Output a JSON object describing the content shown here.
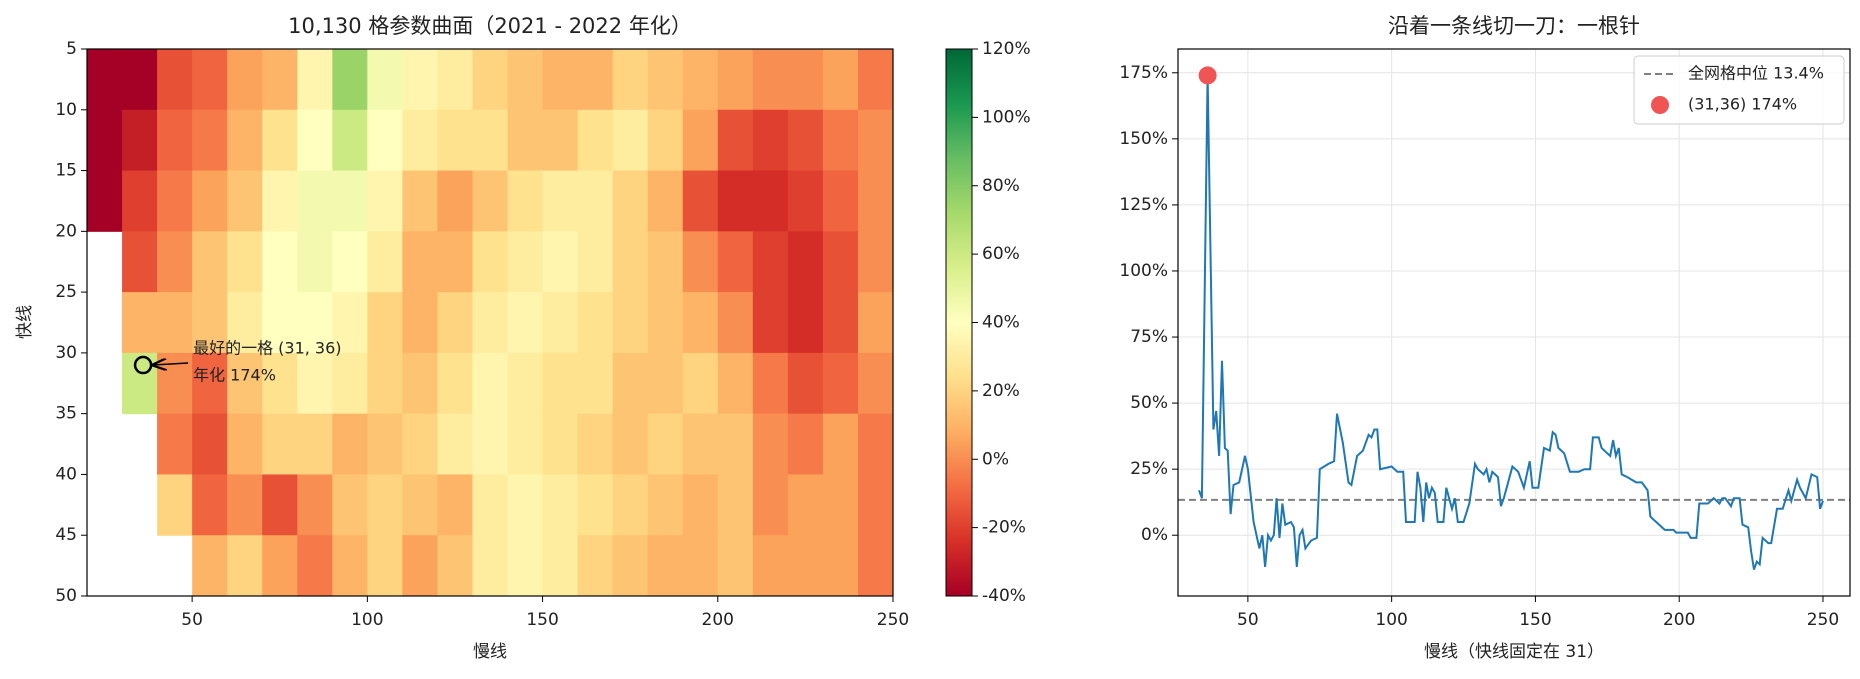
{
  "chart_data": [
    {
      "type": "heatmap",
      "title": "10,130 格参数曲面（2021 - 2022 年化）",
      "x_label": "慢线",
      "y_label": "快线",
      "cmap": "RdYlGn",
      "x_edges": [
        20,
        30,
        40,
        50,
        60,
        70,
        80,
        90,
        100,
        110,
        120,
        130,
        140,
        150,
        160,
        170,
        180,
        190,
        200,
        210,
        220,
        230,
        240,
        250
      ],
      "y_edges": [
        5,
        10,
        15,
        20,
        25,
        30,
        35,
        40,
        45,
        50
      ],
      "values": [
        [
          -40,
          -40,
          -15,
          -10,
          5,
          10,
          35,
          75,
          45,
          35,
          30,
          20,
          15,
          10,
          10,
          20,
          15,
          10,
          5,
          0,
          0,
          5,
          -5
        ],
        [
          -40,
          -30,
          -10,
          -5,
          10,
          25,
          40,
          60,
          40,
          30,
          25,
          25,
          15,
          15,
          25,
          30,
          20,
          5,
          -15,
          -20,
          -15,
          -5,
          0
        ],
        [
          -40,
          -20,
          -5,
          5,
          15,
          35,
          45,
          45,
          35,
          15,
          5,
          15,
          25,
          30,
          30,
          20,
          10,
          -15,
          -25,
          -25,
          -20,
          -10,
          0
        ],
        [
          null,
          -15,
          0,
          15,
          25,
          40,
          45,
          40,
          30,
          10,
          10,
          25,
          30,
          35,
          30,
          20,
          15,
          0,
          -10,
          -20,
          -25,
          -15,
          0
        ],
        [
          null,
          10,
          10,
          15,
          30,
          40,
          40,
          35,
          20,
          10,
          20,
          30,
          35,
          30,
          25,
          20,
          15,
          10,
          0,
          -20,
          -25,
          -15,
          5
        ],
        [
          null,
          60,
          0,
          -10,
          15,
          25,
          35,
          30,
          20,
          15,
          25,
          35,
          30,
          25,
          25,
          15,
          15,
          20,
          10,
          -5,
          -15,
          -10,
          0
        ],
        [
          null,
          null,
          -5,
          -15,
          10,
          20,
          20,
          10,
          15,
          20,
          30,
          35,
          30,
          25,
          20,
          15,
          20,
          15,
          15,
          0,
          -5,
          5,
          -5
        ],
        [
          null,
          null,
          20,
          -10,
          0,
          -15,
          0,
          15,
          20,
          15,
          10,
          30,
          35,
          30,
          25,
          20,
          15,
          10,
          15,
          0,
          5,
          5,
          -5
        ],
        [
          null,
          null,
          null,
          10,
          20,
          5,
          -5,
          10,
          20,
          5,
          15,
          30,
          35,
          30,
          20,
          15,
          10,
          10,
          15,
          5,
          5,
          5,
          -5
        ]
      ],
      "xlim": [
        20,
        250
      ],
      "ylim": [
        50,
        5
      ],
      "xticks": [
        50,
        100,
        150,
        200,
        250
      ],
      "yticks": [
        5,
        10,
        15,
        20,
        25,
        30,
        35,
        40,
        45,
        50
      ],
      "clim": [
        -40,
        120
      ],
      "cticks": [
        {
          "value": -40,
          "label": "-40%"
        },
        {
          "value": -20,
          "label": "-20%"
        },
        {
          "value": 0,
          "label": "0%"
        },
        {
          "value": 20,
          "label": "20%"
        },
        {
          "value": 40,
          "label": "40%"
        },
        {
          "value": 60,
          "label": "60%"
        },
        {
          "value": 80,
          "label": "80%"
        },
        {
          "value": 100,
          "label": "100%"
        },
        {
          "value": 120,
          "label": "120%"
        }
      ],
      "best_point": {
        "x": 36,
        "y": 31
      },
      "annotation": [
        "最好的一格 (31, 36)",
        "年化 174%"
      ]
    },
    {
      "type": "line",
      "title": "沿着一条线切一刀：一根针",
      "x_label": "慢线（快线固定在 31）",
      "grid": true,
      "legend": "upper right",
      "x": [
        33,
        34,
        36,
        38,
        39,
        40,
        41,
        42,
        43,
        44,
        45,
        47,
        49,
        50,
        52,
        54,
        55,
        56,
        57,
        58,
        59,
        60,
        61,
        62,
        63,
        65,
        66,
        67,
        68,
        69,
        70,
        72,
        74,
        75,
        78,
        80,
        81,
        83,
        85,
        86,
        88,
        90,
        92,
        93,
        94,
        95,
        96,
        100,
        102,
        104,
        105,
        108,
        109,
        110,
        111,
        112,
        113,
        114,
        115,
        116,
        118,
        119,
        121,
        122,
        123,
        125,
        127,
        129,
        130,
        132,
        133,
        134,
        135,
        137,
        138,
        139,
        140,
        142,
        144,
        146,
        148,
        149,
        151,
        153,
        155,
        156,
        157,
        158,
        160,
        162,
        165,
        167,
        169,
        170,
        172,
        173,
        175,
        176,
        177,
        178,
        179,
        180,
        182,
        185,
        187,
        189,
        190,
        192,
        195,
        198,
        199,
        201,
        203,
        204,
        206,
        207,
        210,
        212,
        214,
        215,
        216,
        218,
        219,
        221,
        222,
        224,
        225,
        226,
        227,
        228,
        229,
        231,
        232,
        234,
        236,
        238,
        239,
        241,
        242,
        244,
        246,
        248,
        249,
        250
      ],
      "series": [
        {
          "color": "#1f77b4",
          "values": [
            17,
            14,
            174,
            40,
            47,
            30,
            66,
            33,
            32,
            8,
            19,
            20,
            30,
            25,
            5,
            -5,
            0,
            -12,
            0,
            -2,
            0,
            14,
            -1,
            12,
            4,
            5,
            3,
            -12,
            0,
            2,
            -5,
            -2,
            -1,
            25,
            27,
            28,
            46,
            35,
            20,
            19,
            30,
            32,
            38,
            37,
            40,
            40,
            25,
            26,
            24,
            24,
            5,
            5,
            24,
            18,
            5,
            20,
            14,
            18,
            16,
            5,
            5,
            18,
            10,
            14,
            5,
            5,
            12,
            27,
            25,
            23,
            25,
            20,
            24,
            22,
            11,
            14,
            18,
            26,
            24,
            18,
            28,
            18,
            18,
            33,
            32,
            39,
            38,
            33,
            31,
            24,
            24,
            25,
            25,
            37,
            37,
            33,
            31,
            30,
            36,
            30,
            33,
            23,
            22,
            20,
            20,
            17,
            7,
            5,
            2,
            2,
            1,
            1,
            1,
            -1,
            -1,
            12,
            12,
            14,
            12,
            14,
            14,
            11,
            14,
            14,
            4,
            3,
            -6,
            -13,
            -10,
            -11,
            -1,
            -3,
            -3,
            10,
            10,
            17,
            13,
            21,
            18,
            14,
            23,
            22,
            10,
            13
          ]
        }
      ],
      "median": {
        "name": "全网格中位 13.4%",
        "value": 13.4,
        "color": "#808080"
      },
      "best": {
        "name": "(31,36) 174%",
        "x": 36,
        "value": 174,
        "color": "#f05454"
      },
      "xlim": [
        25.7,
        259.4
      ],
      "ylim": [
        -23,
        184
      ],
      "xticks": [
        50,
        100,
        150,
        200,
        250
      ],
      "yticks": [
        {
          "value": 0,
          "label": "0%"
        },
        {
          "value": 25,
          "label": "25%"
        },
        {
          "value": 50,
          "label": "50%"
        },
        {
          "value": 75,
          "label": "75%"
        },
        {
          "value": 100,
          "label": "100%"
        },
        {
          "value": 125,
          "label": "125%"
        },
        {
          "value": 150,
          "label": "150%"
        },
        {
          "value": 175,
          "label": "175%"
        }
      ]
    }
  ]
}
